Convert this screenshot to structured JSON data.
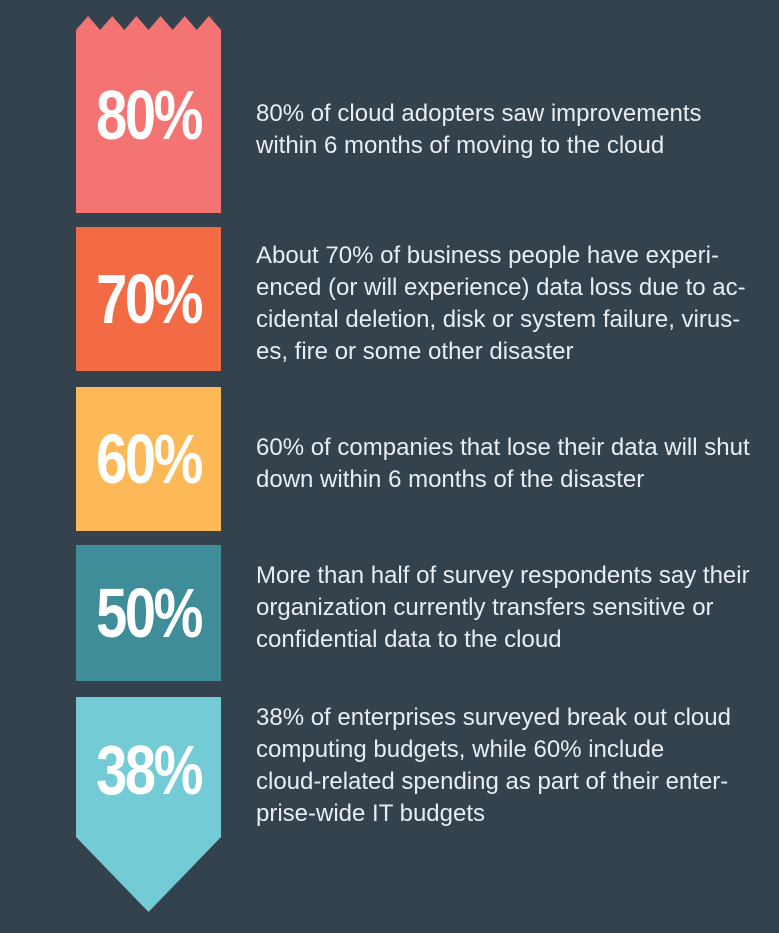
{
  "stats": [
    {
      "value": "80%",
      "color": "#f47373",
      "lines": [
        "80% of cloud adopters saw improvements",
        "within 6 months of moving to the cloud"
      ]
    },
    {
      "value": "70%",
      "color": "#f26b44",
      "lines": [
        "About 70% of business people have experi-",
        "enced (or will experience) data loss due to ac-",
        "cidental deletion, disk or system failure, virus-",
        "es, fire or some other disaster"
      ]
    },
    {
      "value": "60%",
      "color": "#fdb858",
      "lines": [
        "60% of companies that lose their data will shut",
        "down within 6 months of the disaster"
      ]
    },
    {
      "value": "50%",
      "color": "#3e8d98",
      "lines": [
        "More than half of survey respondents say their",
        "organization currently transfers sensitive or",
        "confidential data to the cloud"
      ]
    },
    {
      "value": "38%",
      "color": "#72cbd5",
      "lines": [
        "38% of enterprises surveyed break out cloud",
        "computing budgets, while 60% include",
        "cloud-related spending as part of their enter-",
        "prise-wide IT budgets"
      ]
    }
  ]
}
